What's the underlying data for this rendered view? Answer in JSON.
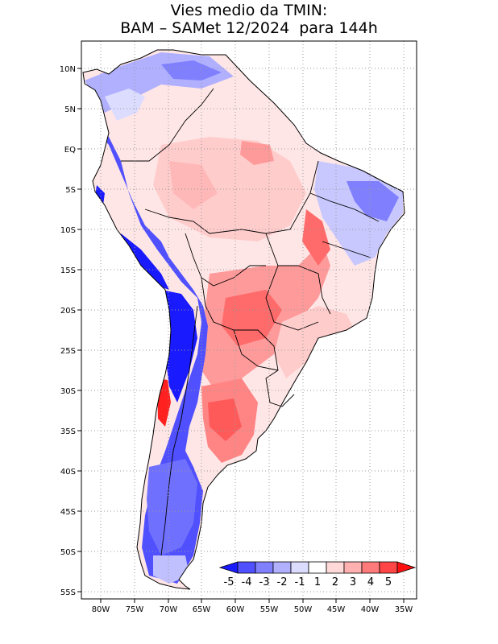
{
  "title": {
    "line1": "Vies medio da TMIN:",
    "line2": "BAM – SAMet 12/2024  para 144h"
  },
  "map": {
    "region": "South America",
    "field": "TMIN mean bias",
    "lon_range": [
      -82,
      -34
    ],
    "lat_range": [
      -56,
      13
    ],
    "x_ticks": [
      "80W",
      "75W",
      "70W",
      "65W",
      "60W",
      "55W",
      "50W",
      "45W",
      "40W",
      "35W"
    ],
    "y_ticks": [
      "10N",
      "5N",
      "EQ",
      "5S",
      "10S",
      "15S",
      "20S",
      "25S",
      "30S",
      "35S",
      "40S",
      "45S",
      "50S",
      "55S"
    ],
    "gridlines": "dotted"
  },
  "colorbar": {
    "labels": [
      "-5",
      "-4",
      "-3",
      "-2",
      "-1",
      "1",
      "2",
      "3",
      "4",
      "5"
    ],
    "colors": [
      "#1a1aff",
      "#5050ff",
      "#8080ff",
      "#b0b0ff",
      "#dcdcff",
      "#ffffff",
      "#ffd8d8",
      "#ffb0b0",
      "#ff7a7a",
      "#ff4545",
      "#ff1010"
    ]
  }
}
